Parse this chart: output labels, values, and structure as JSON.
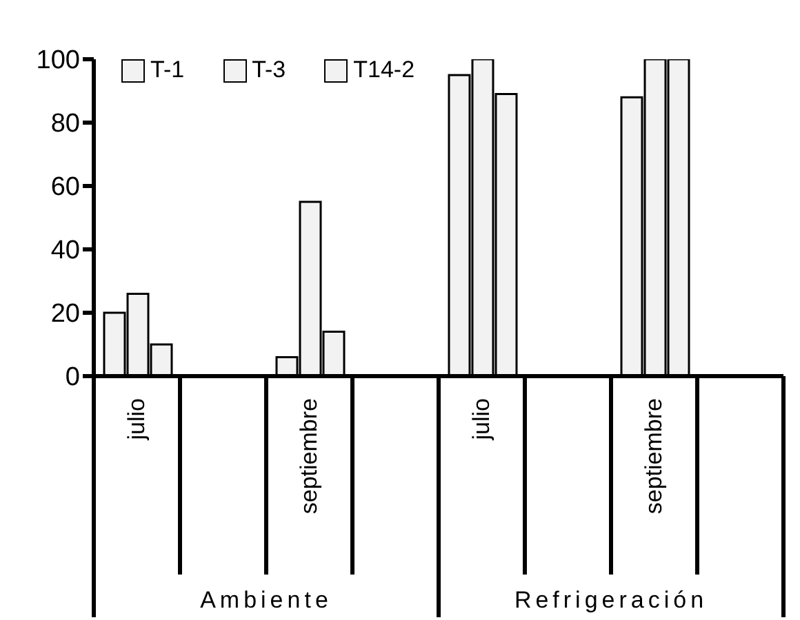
{
  "chart_data": {
    "type": "bar",
    "categories": [
      "julio",
      null,
      "septiembre",
      null,
      "julio",
      null,
      "septiembre",
      null
    ],
    "annotations": [
      "Ambiente",
      "Refrigeración"
    ],
    "series": [
      {
        "name": "T-1",
        "color": "#f2f2f2",
        "values": [
          20,
          null,
          6,
          null,
          95,
          null,
          88,
          null
        ]
      },
      {
        "name": "T-3",
        "color": "#f2f2f2",
        "values": [
          26,
          null,
          55,
          null,
          100,
          null,
          100,
          null
        ]
      },
      {
        "name": "T14-2",
        "color": "#f2f2f2",
        "values": [
          10,
          null,
          14,
          null,
          89,
          null,
          100,
          null
        ]
      }
    ],
    "ylim": [
      0,
      100
    ],
    "yticks": [
      0,
      20,
      40,
      60,
      80,
      100
    ],
    "grid": false,
    "legend": "top left"
  }
}
